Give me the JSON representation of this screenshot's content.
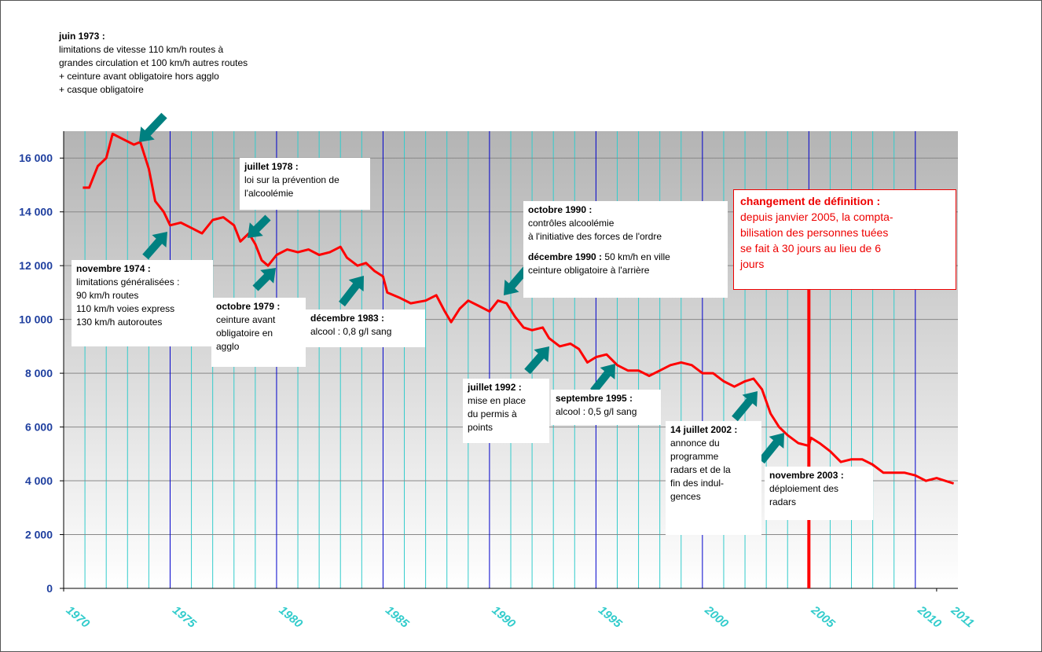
{
  "chart_data": {
    "type": "line",
    "xlim": [
      1970,
      2012
    ],
    "ylim": [
      0,
      17000
    ],
    "xticks": [
      1970,
      1975,
      1980,
      1985,
      1990,
      1995,
      2000,
      2005,
      2010,
      2011
    ],
    "yticks": [
      {
        "value": 0,
        "label": "0"
      },
      {
        "value": 2000,
        "label": "2 000"
      },
      {
        "value": 4000,
        "label": "4 000"
      },
      {
        "value": 6000,
        "label": "6 000"
      },
      {
        "value": 8000,
        "label": "8 000"
      },
      {
        "value": 10000,
        "label": "10 000"
      },
      {
        "value": 12000,
        "label": "12 000"
      },
      {
        "value": 14000,
        "label": "14 000"
      },
      {
        "value": 16000,
        "label": "16 000"
      }
    ],
    "grid": true,
    "series": [
      {
        "color": "#ff0000",
        "x": [
          1970.9,
          1971.2,
          1971.6,
          1972.0,
          1972.3,
          1972.8,
          1973.3,
          1973.6,
          1974.0,
          1974.3,
          1974.7,
          1975.0,
          1975.5,
          1976.0,
          1976.5,
          1977.0,
          1977.5,
          1978.0,
          1978.3,
          1978.7,
          1979.0,
          1979.3,
          1979.6,
          1980.0,
          1980.5,
          1981.0,
          1981.5,
          1982.0,
          1982.5,
          1983.0,
          1983.3,
          1983.8,
          1984.2,
          1984.6,
          1985.0,
          1985.2,
          1985.8,
          1986.3,
          1987.0,
          1987.5,
          1987.9,
          1988.2,
          1988.6,
          1989.0,
          1989.5,
          1990.0,
          1990.4,
          1990.8,
          1991.2,
          1991.6,
          1992.0,
          1992.5,
          1992.8,
          1993.3,
          1993.8,
          1994.2,
          1994.6,
          1995.0,
          1995.5,
          1996.0,
          1996.5,
          1997.0,
          1997.5,
          1998.0,
          1998.5,
          1999.0,
          1999.5,
          2000.0,
          2000.5,
          2001.0,
          2001.5,
          2002.0,
          2002.4,
          2002.8,
          2003.2,
          2003.6,
          2004.0,
          2004.5,
          2005.0,
          2005.1,
          2005.5,
          2006.0,
          2006.5,
          2007.0,
          2007.5,
          2008.0,
          2008.5,
          2009.0,
          2009.5,
          2010.0,
          2010.5,
          2011.0,
          2011.8
        ],
        "values": [
          14900,
          14900,
          15700,
          16000,
          16900,
          16700,
          16500,
          16600,
          15600,
          14400,
          14000,
          13500,
          13600,
          13400,
          13200,
          13700,
          13800,
          13500,
          12900,
          13200,
          12800,
          12200,
          12000,
          12400,
          12600,
          12500,
          12600,
          12400,
          12500,
          12700,
          12300,
          12000,
          12100,
          11800,
          11600,
          11000,
          10800,
          10600,
          10700,
          10900,
          10300,
          9900,
          10400,
          10700,
          10500,
          10300,
          10700,
          10600,
          10100,
          9700,
          9600,
          9700,
          9300,
          9000,
          9100,
          8900,
          8400,
          8600,
          8700,
          8300,
          8100,
          8100,
          7900,
          8100,
          8300,
          8400,
          8300,
          8000,
          8000,
          7700,
          7500,
          7700,
          7800,
          7400,
          6500,
          6000,
          5700,
          5400,
          5300,
          5600,
          5400,
          5100,
          4700,
          4800,
          4800,
          4600,
          4300,
          4300,
          4300,
          4200,
          4000,
          4100,
          3900
        ]
      }
    ],
    "annotations": [
      {
        "title": "juin 1973 :",
        "lines": [
          "limitations de vitesse 110 km/h routes à",
          "grandes circulation et 100 km/h autres routes",
          "+ ceinture avant obligatoire hors agglo",
          "+ casque obligatoire"
        ]
      },
      {
        "title": "novembre 1974 :",
        "lines": [
          "limitations généralisées :",
          "90 km/h routes",
          "110 km/h voies express",
          "130 km/h autoroutes"
        ]
      },
      {
        "title": "juillet 1978 :",
        "lines": [
          "loi sur la prévention de",
          "l'alcoolémie"
        ]
      },
      {
        "title": "octobre 1979 :",
        "lines": [
          "ceinture avant",
          "obligatoire en",
          "agglo"
        ]
      },
      {
        "title": "décembre 1983 :",
        "lines": [
          "alcool : 0,8 g/l sang"
        ]
      },
      {
        "title": "octobre 1990 :",
        "lines": [
          "contrôles alcoolémie",
          "à l'initiative des forces de l'ordre"
        ]
      },
      {
        "title": "décembre 1990 :",
        "lines": [
          "50 km/h en ville",
          "ceinture  obligatoire à l'arrière"
        ]
      },
      {
        "title": "juillet 1992 :",
        "lines": [
          "mise en place",
          "du permis à",
          "points"
        ]
      },
      {
        "title": "septembre 1995 :",
        "lines": [
          "alcool : 0,5 g/l sang"
        ]
      },
      {
        "title": "14 juillet 2002 :",
        "lines": [
          "annonce du",
          "programme",
          "radars et de la",
          "fin des indul-",
          "gences"
        ]
      },
      {
        "title": "novembre 2003 :",
        "lines": [
          "déploiement des",
          "radars"
        ]
      },
      {
        "title": "changement de définition :",
        "lines": [
          "depuis janvier 2005, la compta-",
          "bilisation  des personnes tuées",
          "se fait à 30 jours au lieu de 6",
          "jours"
        ]
      }
    ]
  }
}
